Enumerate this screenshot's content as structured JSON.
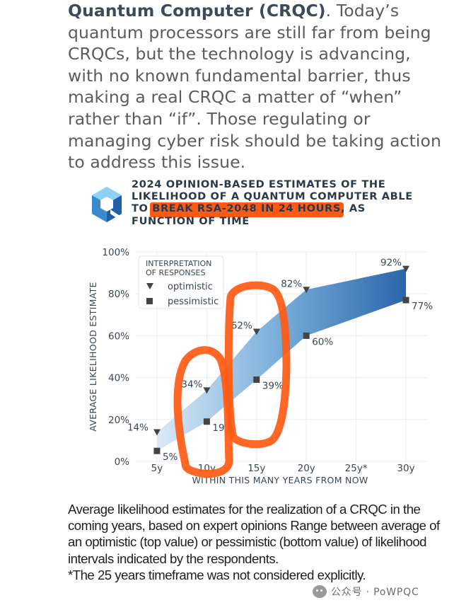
{
  "intro": {
    "strong_text": "Quantum Computer (CRQC)",
    "rest_text": ". Today’s quantum processors are still far from being CRQCs, but the technology is advancing, with no known fundamental barrier, thus making a real CRQC a matter of “when” rather than “if”. Those regulating or managing cyber risk should be taking action to address this issue."
  },
  "chart_title": {
    "line_a": "2024 OPINION-BASED ESTIMATES OF THE LIKELIHOOD OF A QUANTUM COMPUTER ABLE TO ",
    "highlight": "BREAK RSA-2048 IN 24 HOURS",
    "line_b": ", AS FUNCTION OF TIME"
  },
  "chart_data": {
    "type": "area",
    "title": "2024 OPINION-BASED ESTIMATES OF THE LIKELIHOOD OF A QUANTUM COMPUTER ABLE TO BREAK RSA-2048 IN 24 HOURS, AS FUNCTION OF TIME",
    "xlabel": "WITHIN THIS MANY YEARS FROM NOW",
    "ylabel": "AVERAGE LIKELIHOOD ESTIMATE",
    "categories": [
      "5y",
      "10y",
      "15y",
      "20y",
      "25y*",
      "30y"
    ],
    "yticks": [
      "0%",
      "20%",
      "40%",
      "60%",
      "80%",
      "100%"
    ],
    "ylim": [
      0,
      100
    ],
    "grid": true,
    "legend": {
      "title_line1": "INTERPRETATION",
      "title_line2": "OF RESPONSES",
      "position": "top-left"
    },
    "series": [
      {
        "name": "optimistic",
        "marker": "triangle-down",
        "x": [
          5,
          10,
          15,
          20,
          30
        ],
        "values": [
          14,
          34,
          62,
          82,
          92
        ],
        "labels": [
          "14%",
          "34%",
          "62%",
          "82%",
          "92%"
        ]
      },
      {
        "name": "pessimistic",
        "marker": "square",
        "x": [
          5,
          10,
          15,
          20,
          30
        ],
        "values": [
          5,
          19,
          39,
          60,
          77
        ],
        "labels": [
          "5%",
          "19%",
          "39%",
          "60%",
          "77%"
        ]
      }
    ],
    "band_colors": {
      "light": "#d6e6f4",
      "dark": "#2e6fb2"
    },
    "marker_color": "#444444"
  },
  "annotation_color": "#ff5a14",
  "caption": {
    "line1": "Average likelihood estimates for the realization of a CRQC in the coming years, based on expert opinions Range between average of an optimistic (top value) or pessimistic (bottom value) of likelihood intervals indicated by the respondents.",
    "line2": "*The 25 years timeframe was not considered explicitly."
  },
  "watermark": "公众号 · PoWPQC"
}
